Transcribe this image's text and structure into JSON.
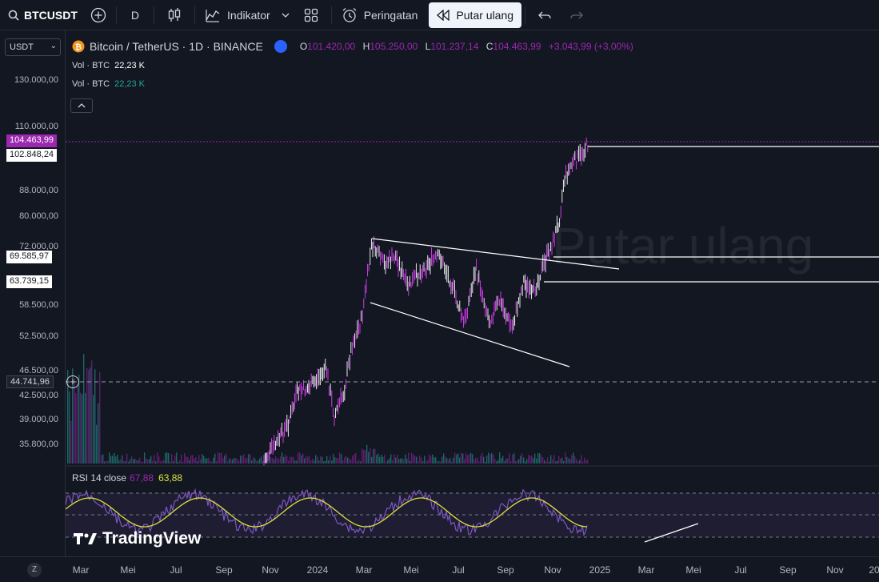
{
  "toolbar": {
    "symbol": "BTCUSDT",
    "interval": "D",
    "indicators_label": "Indikator",
    "alerts_label": "Peringatan",
    "replay_label": "Putar ulang"
  },
  "scale": {
    "currency": "USDT"
  },
  "legend": {
    "title": "Bitcoin / TetherUS · 1D · BINANCE",
    "open_key": "O",
    "open": "101.420,00",
    "high_key": "H",
    "high": "105.250,00",
    "low_key": "L",
    "low": "101.237,14",
    "close_key": "C",
    "close": "104.463,99",
    "change": "+3.043,99 (+3,00%)",
    "vol1_label": "Vol · BTC",
    "vol1_value": "22,23 K",
    "vol2_label": "Vol · BTC",
    "vol2_value": "22,23 K"
  },
  "price_ticks": [
    "130.000,00",
    "110.000,00",
    "88.000,00",
    "80.000,00",
    "72.000,00",
    "58.500,00",
    "52.500,00",
    "46.500,00",
    "42.500,00",
    "39.000,00",
    "35.800,00"
  ],
  "price_tags": {
    "current": "104.463,99",
    "line1": "102.848,24",
    "line2": "69.585,97",
    "line3": "63.739,15",
    "crosshair": "44.741,96"
  },
  "rsi": {
    "label": "RSI 14 close",
    "value1": "67,88",
    "value2": "63,88"
  },
  "brand": "TradingView",
  "watermark": "Putar ulang",
  "time_labels": [
    "Mar",
    "Mei",
    "Jul",
    "Sep",
    "Nov",
    "2024",
    "Mar",
    "Mei",
    "Jul",
    "Sep",
    "Nov",
    "2025",
    "Mar",
    "Mei",
    "Jul",
    "Sep",
    "Nov",
    "20"
  ],
  "z_label": "Z",
  "colors": {
    "accent": "#9c27b0",
    "rsi_signal": "#d9e33b",
    "background": "#131722",
    "candle": "#ffffff"
  }
}
